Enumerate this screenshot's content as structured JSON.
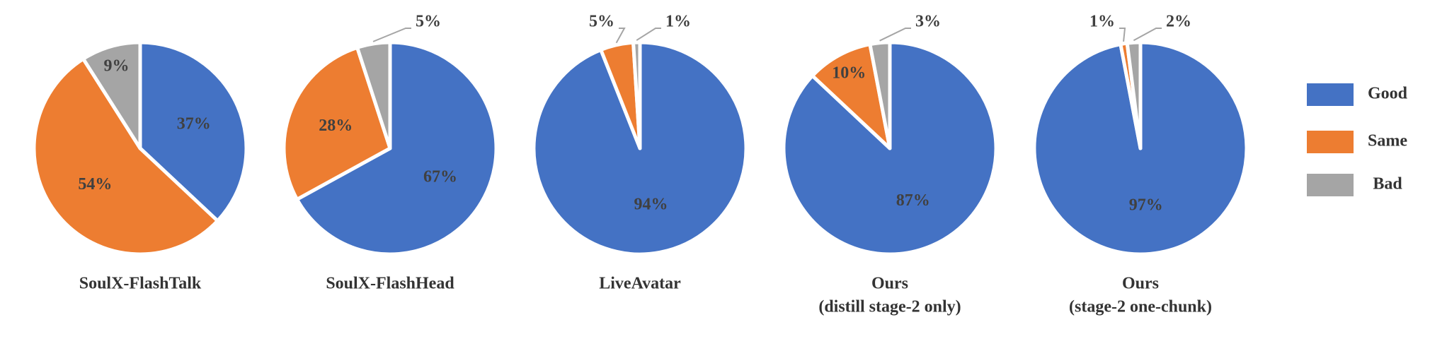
{
  "chart_data": [
    {
      "type": "pie",
      "title": [
        "SoulX-FlashTalk"
      ],
      "categories": [
        "Good",
        "Same",
        "Bad"
      ],
      "values": [
        37,
        54,
        9
      ],
      "value_labels": [
        "37%",
        "54%",
        "9%"
      ],
      "colors": [
        "#4472c4",
        "#ed7d31",
        "#a5a5a5"
      ]
    },
    {
      "type": "pie",
      "title": [
        "SoulX-FlashHead"
      ],
      "categories": [
        "Good",
        "Same",
        "Bad"
      ],
      "values": [
        67,
        28,
        5
      ],
      "value_labels": [
        "67%",
        "28%",
        "5%"
      ],
      "colors": [
        "#4472c4",
        "#ed7d31",
        "#a5a5a5"
      ]
    },
    {
      "type": "pie",
      "title": [
        "LiveAvatar"
      ],
      "categories": [
        "Good",
        "Same",
        "Bad"
      ],
      "values": [
        94,
        5,
        1
      ],
      "value_labels": [
        "94%",
        "5%",
        "1%"
      ],
      "colors": [
        "#4472c4",
        "#ed7d31",
        "#a5a5a5"
      ]
    },
    {
      "type": "pie",
      "title": [
        "Ours",
        "(distill stage-2 only)"
      ],
      "categories": [
        "Good",
        "Same",
        "Bad"
      ],
      "values": [
        87,
        10,
        3
      ],
      "value_labels": [
        "87%",
        "10%",
        "3%"
      ],
      "colors": [
        "#4472c4",
        "#ed7d31",
        "#a5a5a5"
      ]
    },
    {
      "type": "pie",
      "title": [
        "Ours",
        "(stage-2 one-chunk)"
      ],
      "categories": [
        "Good",
        "Same",
        "Bad"
      ],
      "values": [
        97,
        1,
        2
      ],
      "value_labels": [
        "97%",
        "1%",
        "2%"
      ],
      "colors": [
        "#4472c4",
        "#ed7d31",
        "#a5a5a5"
      ]
    }
  ]
}
